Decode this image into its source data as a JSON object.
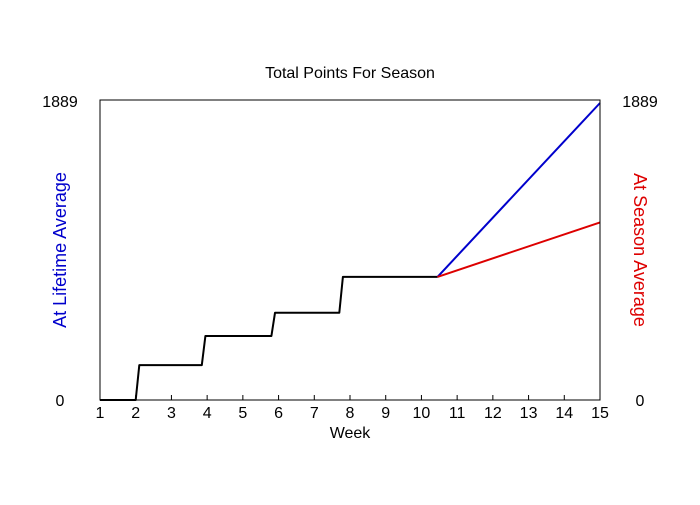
{
  "chart_data": {
    "type": "line",
    "title": "Total Points For Season",
    "xlabel": "Week",
    "ylabel_left": "At Lifetime Average",
    "ylabel_right": "At Season Average",
    "ylim": [
      0,
      1889
    ],
    "xlim": [
      1,
      15
    ],
    "y_tick_labels": [
      "0",
      "1889"
    ],
    "x_tick_labels": [
      "1",
      "2",
      "3",
      "4",
      "5",
      "6",
      "7",
      "8",
      "9",
      "10",
      "11",
      "12",
      "13",
      "14",
      "15"
    ],
    "grid": false,
    "legend": "none",
    "colors": {
      "actual": "#000000",
      "lifetime_projection": "#0000cc",
      "season_projection": "#dd0000",
      "left_label": "#0000cc",
      "right_label": "#dd0000"
    },
    "series": [
      {
        "values": [
          [
            1,
            0
          ],
          [
            2,
            0
          ],
          [
            2.1,
            220
          ],
          [
            3.85,
            220
          ],
          [
            3.95,
            403
          ],
          [
            5.8,
            403
          ],
          [
            5.9,
            549
          ],
          [
            7.7,
            549
          ],
          [
            7.8,
            775
          ],
          [
            10.45,
            775
          ]
        ]
      },
      {
        "values": [
          [
            10.45,
            775
          ],
          [
            15,
            1870
          ]
        ]
      },
      {
        "values": [
          [
            10.45,
            775
          ],
          [
            15,
            1118
          ]
        ]
      }
    ]
  }
}
